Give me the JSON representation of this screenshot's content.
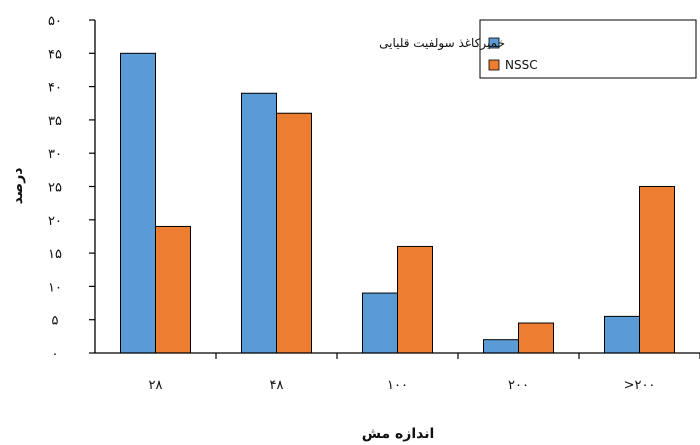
{
  "chart_data": {
    "type": "bar",
    "categories": [
      "۲۸",
      "۴۸",
      "۱۰۰",
      "۲۰۰",
      ">۲۰۰"
    ],
    "series": [
      {
        "name": "خمیرکاغذ سولفیت قلیایی",
        "values": [
          45,
          39,
          null,
          2,
          5.5
        ],
        "color": "#5b9bd5"
      },
      {
        "name": "NSSC",
        "values": [
          19,
          36,
          null,
          4.5,
          25
        ],
        "color": "#ed7d31"
      }
    ],
    "series_values_fallback": [
      [
        45,
        39,
        9,
        2,
        5.5
      ],
      [
        19,
        36,
        16,
        4.5,
        25
      ]
    ],
    "ylim": [
      0,
      50
    ],
    "yticks": [
      0,
      5,
      10,
      15,
      20,
      25,
      30,
      35,
      40,
      45,
      50
    ],
    "ytick_labels": [
      "۰",
      "۵",
      "۱۰",
      "۱۵",
      "۲۰",
      "۲۵",
      "۳۰",
      "۳۵",
      "۴۰",
      "۴۵",
      "۵۰"
    ],
    "xlabel": "اندازه مش",
    "ylabel": "درصد",
    "grid": false,
    "legend_position": "top-right"
  }
}
